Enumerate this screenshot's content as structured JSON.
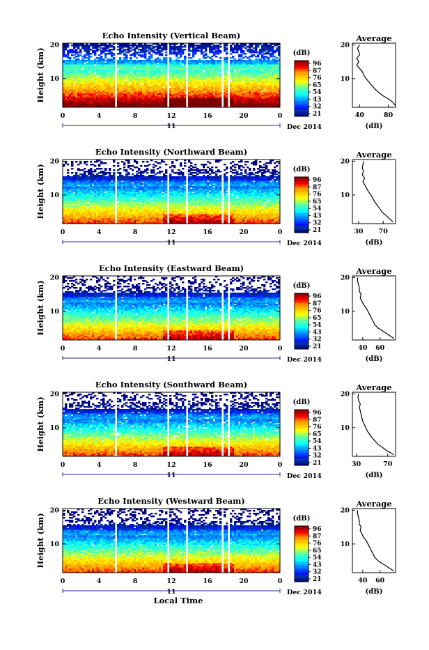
{
  "chart_data": [
    {
      "type": "heatmap",
      "title": "Echo Intensity (Vertical Beam)",
      "ylabel": "Height (km)",
      "xlim": [
        0,
        24
      ],
      "ylim": [
        1.5,
        20.5
      ],
      "x_ticks": [
        "0",
        "4",
        "8",
        "12",
        "16",
        "20",
        "0"
      ],
      "y_ticks": [
        "20",
        "10"
      ],
      "date_mid": "11",
      "date_label": "Dec 2014",
      "colorbar": {
        "unit": "(dB)",
        "ticks": [
          "96",
          "87",
          "76",
          "65",
          "54",
          "43",
          "32",
          "21"
        ],
        "range": [
          21,
          96
        ]
      },
      "data_gaps_hours": [
        5.9,
        11.6,
        13.8,
        17.7,
        18.4
      ],
      "profile": {
        "title": "Average",
        "xlabel": "(dB)",
        "x_ticks": [
          "40",
          "80"
        ],
        "xlim": [
          30,
          90
        ],
        "y_ticks": [
          "20",
          "10"
        ],
        "height_km": [
          2,
          3,
          4,
          5,
          6,
          7,
          8,
          9,
          10,
          11,
          12,
          13,
          14,
          15,
          16,
          17,
          18,
          19,
          20
        ],
        "db": [
          90,
          86,
          80,
          72,
          66,
          61,
          57,
          53,
          49,
          46,
          44,
          40,
          36,
          39,
          36,
          40,
          39,
          37,
          40
        ]
      }
    },
    {
      "type": "heatmap",
      "title": "Echo Intensity (Northward Beam)",
      "ylabel": "Height (km)",
      "xlim": [
        0,
        24
      ],
      "ylim": [
        1.5,
        20.5
      ],
      "x_ticks": [
        "0",
        "4",
        "8",
        "12",
        "16",
        "20",
        "0"
      ],
      "y_ticks": [
        "20",
        "10"
      ],
      "date_mid": "11",
      "date_label": "Dec 2014",
      "colorbar": {
        "unit": "(dB)",
        "ticks": [
          "96",
          "87",
          "76",
          "65",
          "54",
          "43",
          "32",
          "21"
        ],
        "range": [
          21,
          96
        ]
      },
      "data_gaps_hours": [
        5.9,
        11.6,
        13.8,
        17.7,
        18.4
      ],
      "profile": {
        "title": "Average",
        "xlabel": "(dB)",
        "x_ticks": [
          "30",
          "70"
        ],
        "xlim": [
          20,
          90
        ],
        "y_ticks": [
          "20",
          "10"
        ],
        "height_km": [
          2,
          3,
          4,
          5,
          6,
          7,
          8,
          9,
          10,
          11,
          12,
          13,
          14,
          15,
          16,
          17,
          18,
          19,
          20
        ],
        "db": [
          86,
          80,
          74,
          68,
          64,
          60,
          56,
          53,
          50,
          46,
          43,
          40,
          37,
          40,
          36,
          38,
          36,
          37,
          38
        ]
      }
    },
    {
      "type": "heatmap",
      "title": "Echo Intensity (Eastward Beam)",
      "ylabel": "Height (km)",
      "xlim": [
        0,
        24
      ],
      "ylim": [
        1.5,
        20.5
      ],
      "x_ticks": [
        "0",
        "4",
        "8",
        "12",
        "16",
        "20",
        "0"
      ],
      "y_ticks": [
        "20",
        "10"
      ],
      "date_mid": "11",
      "date_label": "Dec 2014",
      "colorbar": {
        "unit": "(dB)",
        "ticks": [
          "96",
          "87",
          "76",
          "65",
          "54",
          "43",
          "32",
          "21"
        ],
        "range": [
          21,
          96
        ]
      },
      "data_gaps_hours": [
        5.9,
        11.6,
        13.8,
        17.7,
        18.4
      ],
      "profile": {
        "title": "Average",
        "xlabel": "(dB)",
        "x_ticks": [
          "40",
          "60"
        ],
        "xlim": [
          28,
          78
        ],
        "y_ticks": [
          "20",
          "10"
        ],
        "height_km": [
          2,
          3,
          4,
          5,
          6,
          7,
          8,
          9,
          10,
          11,
          12,
          13,
          14,
          15,
          16,
          17,
          18,
          19,
          20
        ],
        "db": [
          76,
          70,
          64,
          58,
          54,
          52,
          50,
          48,
          46,
          44,
          41,
          39,
          37,
          38,
          36,
          36,
          35,
          34,
          34
        ]
      }
    },
    {
      "type": "heatmap",
      "title": "Echo Intensity (Southward Beam)",
      "ylabel": "Height (km)",
      "xlim": [
        0,
        24
      ],
      "ylim": [
        1.5,
        20.5
      ],
      "x_ticks": [
        "0",
        "4",
        "8",
        "12",
        "16",
        "20",
        "0"
      ],
      "y_ticks": [
        "20",
        "10"
      ],
      "date_mid": "11",
      "date_label": "Dec 2014",
      "colorbar": {
        "unit": "(dB)",
        "ticks": [
          "96",
          "87",
          "76",
          "65",
          "54",
          "43",
          "32",
          "21"
        ],
        "range": [
          21,
          96
        ]
      },
      "data_gaps_hours": [
        5.9,
        11.6,
        13.8,
        17.7,
        18.4
      ],
      "profile": {
        "title": "Average",
        "xlabel": "(dB)",
        "x_ticks": [
          "30",
          "70"
        ],
        "xlim": [
          25,
          80
        ],
        "y_ticks": [
          "20",
          "10"
        ],
        "height_km": [
          2,
          3,
          4,
          5,
          6,
          7,
          8,
          9,
          10,
          11,
          12,
          13,
          14,
          15,
          16,
          17,
          18,
          19,
          20
        ],
        "db": [
          78,
          70,
          64,
          58,
          54,
          50,
          47,
          44,
          42,
          40,
          38,
          37,
          36,
          35,
          34,
          35,
          33,
          32,
          33
        ]
      }
    },
    {
      "type": "heatmap",
      "title": "Echo Intensity (Westward Beam)",
      "ylabel": "Height (km)",
      "xlim": [
        0,
        24
      ],
      "ylim": [
        1.5,
        20.5
      ],
      "x_ticks": [
        "0",
        "4",
        "8",
        "12",
        "16",
        "20",
        "0"
      ],
      "y_ticks": [
        "20",
        "10"
      ],
      "date_mid": "11",
      "date_label": "Dec 2014",
      "xlabel": "Local Time",
      "colorbar": {
        "unit": "(dB)",
        "ticks": [
          "96",
          "87",
          "76",
          "65",
          "54",
          "43",
          "32",
          "21"
        ],
        "range": [
          21,
          96
        ]
      },
      "data_gaps_hours": [
        5.9,
        11.6,
        13.8,
        17.7,
        18.4
      ],
      "profile": {
        "title": "Average",
        "xlabel": "(dB)",
        "x_ticks": [
          "40",
          "60"
        ],
        "xlim": [
          28,
          78
        ],
        "y_ticks": [
          "20",
          "10"
        ],
        "height_km": [
          2,
          3,
          4,
          5,
          6,
          7,
          8,
          9,
          10,
          11,
          12,
          13,
          14,
          15,
          16,
          17,
          18,
          19,
          20
        ],
        "db": [
          76,
          70,
          64,
          58,
          54,
          52,
          50,
          48,
          46,
          44,
          41,
          39,
          37,
          38,
          36,
          36,
          35,
          34,
          34
        ]
      }
    }
  ]
}
